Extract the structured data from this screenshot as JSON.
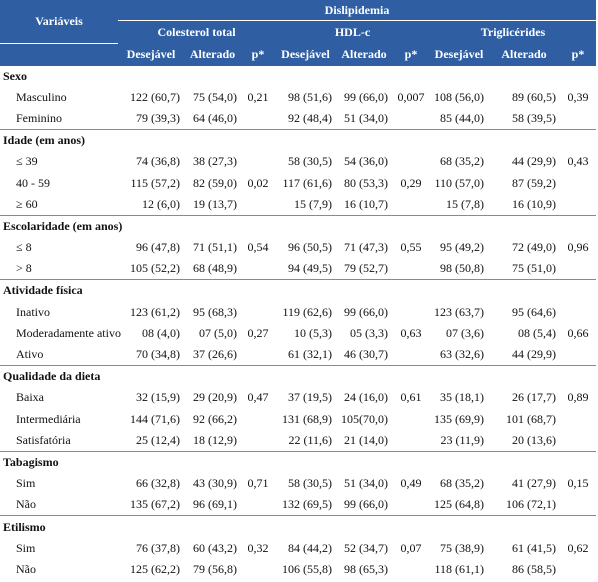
{
  "header": {
    "group": "Dislipidemia",
    "variables": "Variáveis",
    "colesterol": "Colesterol total",
    "hdl": "HDL-c",
    "trig": "Triglicérides",
    "desejavel": "Desejável",
    "alterado": "Alterado",
    "p": "p*"
  },
  "sections": [
    {
      "title": "Sexo",
      "rows": [
        {
          "label": "Masculino",
          "cd": "122 (60,7)",
          "ca": "75 (54,0)",
          "cp": "0,21",
          "hd": "98 (51,6)",
          "ha": "99 (66,0)",
          "hp": "0,007",
          "td": "108 (56,0)",
          "ta": "89 (60,5)",
          "tp": "0,39"
        },
        {
          "label": "Feminino",
          "cd": "79 (39,3)",
          "ca": "64 (46,0)",
          "cp": "",
          "hd": "92 (48,4)",
          "ha": "51 (34,0)",
          "hp": "",
          "td": "85 (44,0)",
          "ta": "58 (39,5)",
          "tp": ""
        }
      ]
    },
    {
      "title": "Idade (em anos)",
      "rows": [
        {
          "label": "≤ 39",
          "cd": "74 (36,8)",
          "ca": "38 (27,3)",
          "cp": "",
          "hd": "58 (30,5)",
          "ha": "54 (36,0)",
          "hp": "",
          "td": "68 (35,2)",
          "ta": "44 (29,9)",
          "tp": "0,43"
        },
        {
          "label": "40 - 59",
          "cd": "115 (57,2)",
          "ca": "82 (59,0)",
          "cp": "0,02",
          "hd": "117 (61,6)",
          "ha": "80 (53,3)",
          "hp": "0,29",
          "td": "110 (57,0)",
          "ta": "87 (59,2)",
          "tp": ""
        },
        {
          "label": "≥ 60",
          "cd": "12 (6,0)",
          "ca": "19 (13,7)",
          "cp": "",
          "hd": "15 (7,9)",
          "ha": "16 (10,7)",
          "hp": "",
          "td": "15 (7,8)",
          "ta": "16 (10,9)",
          "tp": ""
        }
      ]
    },
    {
      "title": "Escolaridade (em anos)",
      "rows": [
        {
          "label": "≤ 8",
          "cd": "96 (47,8)",
          "ca": "71 (51,1)",
          "cp": "0,54",
          "hd": "96 (50,5)",
          "ha": "71 (47,3)",
          "hp": "0,55",
          "td": "95 (49,2)",
          "ta": "72 (49,0)",
          "tp": "0,96"
        },
        {
          "label": "> 8",
          "cd": "105 (52,2)",
          "ca": "68 (48,9)",
          "cp": "",
          "hd": "94 (49,5)",
          "ha": "79 (52,7)",
          "hp": "",
          "td": "98 (50,8)",
          "ta": "75 (51,0)",
          "tp": ""
        }
      ]
    },
    {
      "title": "Atividade física",
      "rows": [
        {
          "label": "Inativo",
          "cd": "123 (61,2)",
          "ca": "95 (68,3)",
          "cp": "",
          "hd": "119 (62,6)",
          "ha": "99 (66,0)",
          "hp": "",
          "td": "123 (63,7)",
          "ta": "95 (64,6)",
          "tp": ""
        },
        {
          "label": "Moderadamente ativo",
          "cd": "08 (4,0)",
          "ca": "07 (5,0)",
          "cp": "0,27",
          "hd": "10 (5,3)",
          "ha": "05 (3,3)",
          "hp": "0,63",
          "td": "07 (3,6)",
          "ta": "08 (5,4)",
          "tp": "0,66"
        },
        {
          "label": "Ativo",
          "cd": "70 (34,8)",
          "ca": "37 (26,6)",
          "cp": "",
          "hd": "61 (32,1)",
          "ha": "46 (30,7)",
          "hp": "",
          "td": "63 (32,6)",
          "ta": "44 (29,9)",
          "tp": ""
        }
      ]
    },
    {
      "title": "Qualidade da dieta",
      "rows": [
        {
          "label": "Baixa",
          "cd": "32 (15,9)",
          "ca": "29 (20,9)",
          "cp": "0,47",
          "hd": "37 (19,5)",
          "ha": "24 (16,0)",
          "hp": "0,61",
          "td": "35 (18,1)",
          "ta": "26 (17,7)",
          "tp": "0,89"
        },
        {
          "label": "Intermediária",
          "cd": "144 (71,6)",
          "ca": "92 (66,2)",
          "cp": "",
          "hd": "131 (68,9)",
          "ha": "105(70,0)",
          "hp": "",
          "td": "135 (69,9)",
          "ta": "101 (68,7)",
          "tp": ""
        },
        {
          "label": "Satisfatória",
          "cd": "25 (12,4)",
          "ca": "18 (12,9)",
          "cp": "",
          "hd": "22 (11,6)",
          "ha": "21 (14,0)",
          "hp": "",
          "td": "23 (11,9)",
          "ta": "20 (13,6)",
          "tp": ""
        }
      ]
    },
    {
      "title": "Tabagismo",
      "rows": [
        {
          "label": "Sim",
          "cd": "66 (32,8)",
          "ca": "43 (30,9)",
          "cp": "0,71",
          "hd": "58 (30,5)",
          "ha": "51 (34,0)",
          "hp": "0,49",
          "td": "68 (35,2)",
          "ta": "41 (27,9)",
          "tp": "0,15"
        },
        {
          "label": "Não",
          "cd": "135 (67,2)",
          "ca": "96 (69,1)",
          "cp": "",
          "hd": "132 (69,5)",
          "ha": "99 (66,0)",
          "hp": "",
          "td": "125 (64,8)",
          "ta": "106 (72,1)",
          "tp": ""
        }
      ]
    },
    {
      "title": "Etilismo",
      "rows": [
        {
          "label": "Sim",
          "cd": "76 (37,8)",
          "ca": "60 (43,2)",
          "cp": "0,32",
          "hd": "84 (44,2)",
          "ha": "52 (34,7)",
          "hp": "0,07",
          "td": "75 (38,9)",
          "ta": "61 (41,5)",
          "tp": "0,62"
        },
        {
          "label": "Não",
          "cd": "125 (62,2)",
          "ca": "79 (56,8)",
          "cp": "",
          "hd": "106 (55,8)",
          "ha": "98 (65,3)",
          "hp": "",
          "td": "118 (61,1)",
          "ta": "86 (58,5)",
          "tp": ""
        }
      ]
    }
  ]
}
